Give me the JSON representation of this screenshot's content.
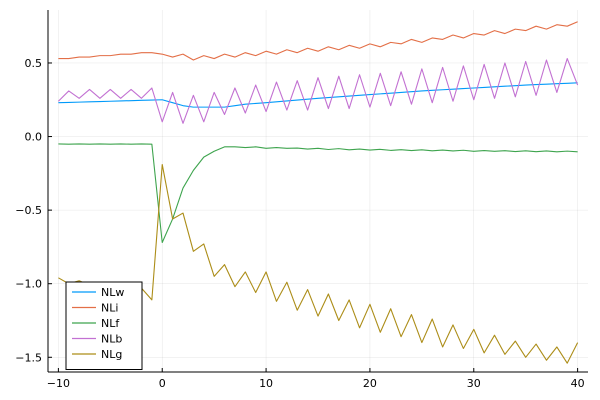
{
  "chart_data": {
    "type": "line",
    "title": "",
    "xlabel": "",
    "ylabel": "",
    "xlim": [
      -11,
      41
    ],
    "ylim": [
      -1.6,
      0.86
    ],
    "x_ticks": [
      -10,
      0,
      10,
      20,
      30,
      40
    ],
    "y_ticks": [
      -1.5,
      -1.0,
      -0.5,
      0.0,
      0.5
    ],
    "x_tick_labels": [
      "−10",
      "0",
      "10",
      "20",
      "30",
      "40"
    ],
    "y_tick_labels": [
      "−1.5",
      "−1.0",
      "−0.5",
      "0.0",
      "0.5"
    ],
    "grid": true,
    "legend_position": "bottom-left",
    "x": [
      -10,
      -9,
      -8,
      -7,
      -6,
      -5,
      -4,
      -3,
      -2,
      -1,
      0,
      1,
      2,
      3,
      4,
      5,
      6,
      7,
      8,
      9,
      10,
      11,
      12,
      13,
      14,
      15,
      16,
      17,
      18,
      19,
      20,
      21,
      22,
      23,
      24,
      25,
      26,
      27,
      28,
      29,
      30,
      31,
      32,
      33,
      34,
      35,
      36,
      37,
      38,
      39,
      40
    ],
    "series": [
      {
        "name": "NLw",
        "color": "#009AFA",
        "values": [
          0.23,
          0.232,
          0.234,
          0.236,
          0.238,
          0.24,
          0.242,
          0.244,
          0.246,
          0.248,
          0.25,
          0.23,
          0.21,
          0.2,
          0.2,
          0.2,
          0.2,
          0.21,
          0.22,
          0.225,
          0.23,
          0.236,
          0.242,
          0.248,
          0.254,
          0.26,
          0.265,
          0.27,
          0.275,
          0.28,
          0.285,
          0.29,
          0.295,
          0.3,
          0.305,
          0.31,
          0.314,
          0.318,
          0.322,
          0.326,
          0.33,
          0.334,
          0.338,
          0.342,
          0.346,
          0.35,
          0.353,
          0.356,
          0.359,
          0.362,
          0.365
        ]
      },
      {
        "name": "NLi",
        "color": "#E36F47",
        "values": [
          0.53,
          0.53,
          0.54,
          0.54,
          0.55,
          0.55,
          0.56,
          0.56,
          0.57,
          0.57,
          0.56,
          0.54,
          0.56,
          0.52,
          0.55,
          0.53,
          0.56,
          0.54,
          0.57,
          0.55,
          0.58,
          0.56,
          0.59,
          0.57,
          0.6,
          0.58,
          0.61,
          0.59,
          0.62,
          0.6,
          0.63,
          0.61,
          0.64,
          0.63,
          0.66,
          0.64,
          0.67,
          0.66,
          0.69,
          0.67,
          0.7,
          0.69,
          0.72,
          0.7,
          0.73,
          0.72,
          0.75,
          0.73,
          0.76,
          0.75,
          0.78
        ]
      },
      {
        "name": "NLf",
        "color": "#3EA44E",
        "values": [
          -0.05,
          -0.052,
          -0.05,
          -0.052,
          -0.05,
          -0.052,
          -0.05,
          -0.052,
          -0.05,
          -0.052,
          -0.72,
          -0.56,
          -0.35,
          -0.23,
          -0.14,
          -0.1,
          -0.07,
          -0.07,
          -0.075,
          -0.07,
          -0.08,
          -0.075,
          -0.08,
          -0.078,
          -0.085,
          -0.08,
          -0.088,
          -0.082,
          -0.09,
          -0.085,
          -0.092,
          -0.087,
          -0.094,
          -0.089,
          -0.095,
          -0.09,
          -0.097,
          -0.092,
          -0.098,
          -0.093,
          -0.1,
          -0.095,
          -0.1,
          -0.096,
          -0.102,
          -0.097,
          -0.103,
          -0.098,
          -0.104,
          -0.099,
          -0.104
        ]
      },
      {
        "name": "NLb",
        "color": "#C271D2",
        "values": [
          0.24,
          0.31,
          0.26,
          0.32,
          0.26,
          0.32,
          0.26,
          0.32,
          0.26,
          0.33,
          0.1,
          0.3,
          0.09,
          0.28,
          0.1,
          0.3,
          0.15,
          0.33,
          0.16,
          0.35,
          0.17,
          0.37,
          0.18,
          0.38,
          0.18,
          0.4,
          0.19,
          0.41,
          0.19,
          0.42,
          0.2,
          0.43,
          0.21,
          0.44,
          0.22,
          0.46,
          0.23,
          0.47,
          0.24,
          0.48,
          0.25,
          0.49,
          0.26,
          0.5,
          0.27,
          0.51,
          0.28,
          0.52,
          0.3,
          0.53,
          0.35
        ]
      },
      {
        "name": "NLg",
        "color": "#AC8D18",
        "values": [
          -0.96,
          -1.0,
          -0.98,
          -1.01,
          -1.0,
          -1.03,
          -1.01,
          -1.04,
          -1.03,
          -1.11,
          -0.19,
          -0.56,
          -0.52,
          -0.78,
          -0.73,
          -0.95,
          -0.87,
          -1.02,
          -0.92,
          -1.06,
          -0.92,
          -1.12,
          -0.99,
          -1.18,
          -1.04,
          -1.22,
          -1.07,
          -1.25,
          -1.11,
          -1.3,
          -1.14,
          -1.33,
          -1.17,
          -1.36,
          -1.21,
          -1.4,
          -1.24,
          -1.43,
          -1.28,
          -1.44,
          -1.31,
          -1.47,
          -1.35,
          -1.48,
          -1.39,
          -1.5,
          -1.41,
          -1.52,
          -1.43,
          -1.54,
          -1.4
        ]
      }
    ]
  }
}
